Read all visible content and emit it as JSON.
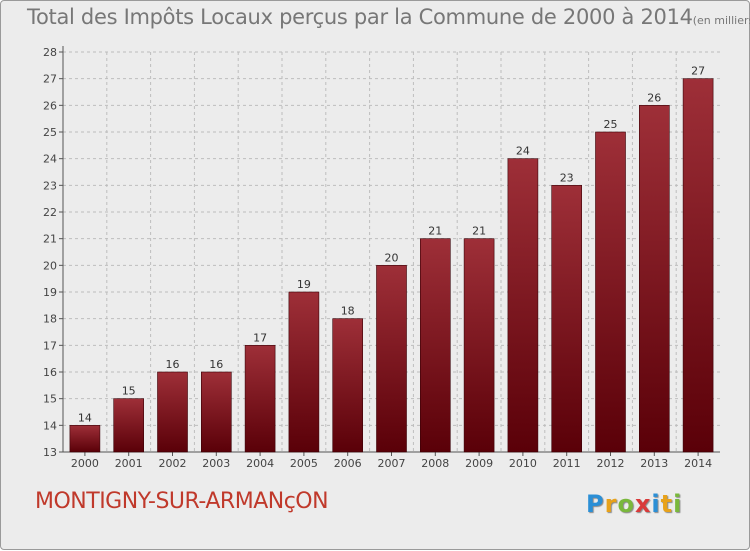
{
  "title": {
    "main": "Total des Impôts Locaux perçus par la Commune de 2000 à 2014",
    "unit": "(en milliers d'€)"
  },
  "commune": "MONTIGNY-SUR-ARMANçON",
  "logo": {
    "letters": [
      "P",
      "r",
      "o",
      "x",
      "i",
      "t",
      "i"
    ],
    "colors": [
      "#2b8fd6",
      "#e8a21a",
      "#7ab83c",
      "#d93a3a",
      "#2b8fd6",
      "#e8a21a",
      "#7ab83c"
    ]
  },
  "colors": {
    "bar_top": "#9e2f38",
    "bar_bottom": "#5a0008",
    "grid": "#bdbdbd",
    "plot_background": "#ececec"
  },
  "chart_data": {
    "type": "bar",
    "categories": [
      "2000",
      "2001",
      "2002",
      "2003",
      "2004",
      "2005",
      "2006",
      "2007",
      "2008",
      "2009",
      "2010",
      "2011",
      "2012",
      "2013",
      "2014"
    ],
    "values": [
      14,
      15,
      16,
      16,
      17,
      19,
      18,
      20,
      21,
      21,
      24,
      23,
      25,
      26,
      27
    ],
    "data_labels": [
      "14",
      "15",
      "16",
      "16",
      "17",
      "19",
      "18",
      "20",
      "21",
      "21",
      "24",
      "23",
      "25",
      "26",
      "27"
    ],
    "ylim": [
      13,
      28
    ],
    "yticks": [
      "13",
      "14",
      "15",
      "16",
      "17",
      "18",
      "19",
      "20",
      "21",
      "22",
      "23",
      "24",
      "25",
      "26",
      "27",
      "28"
    ],
    "grid": true,
    "legend": "none"
  }
}
